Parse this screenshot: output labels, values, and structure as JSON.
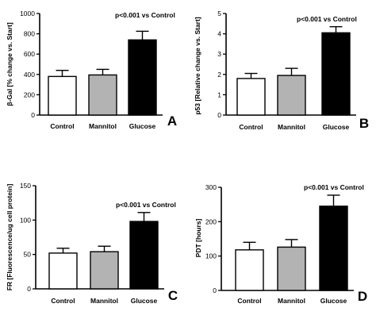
{
  "chart_data": [
    {
      "type": "bar",
      "panel_label": "A",
      "categories": [
        "Control",
        "Mannitol",
        "Glucose"
      ],
      "values": [
        380,
        395,
        740
      ],
      "errors": [
        60,
        55,
        85
      ],
      "ylabel": "β-Gal [% change vs. Start]",
      "ylim": [
        0,
        1000
      ],
      "yticks": [
        0,
        200,
        400,
        600,
        800,
        1000
      ],
      "annotation": "p<0.001 vs Control",
      "bar_colors": [
        "#ffffff",
        "#b3b3b3",
        "#000000"
      ]
    },
    {
      "type": "bar",
      "panel_label": "B",
      "categories": [
        "Control",
        "Mannitol",
        "Glucose"
      ],
      "values": [
        1.8,
        1.95,
        4.05
      ],
      "errors": [
        0.25,
        0.35,
        0.3
      ],
      "ylabel": "p53 [Relative change vs. Start]",
      "ylim": [
        0,
        5
      ],
      "yticks": [
        0,
        1,
        2,
        3,
        4,
        5
      ],
      "annotation": "p<0.001 vs Control",
      "bar_colors": [
        "#ffffff",
        "#b3b3b3",
        "#000000"
      ]
    },
    {
      "type": "bar",
      "panel_label": "C",
      "categories": [
        "Control",
        "Mannitol",
        "Glucose"
      ],
      "values": [
        52,
        54,
        98
      ],
      "errors": [
        7,
        8,
        13
      ],
      "ylabel": "FR [Fluorescence/ug cell protein]",
      "ylim": [
        0,
        150
      ],
      "yticks": [
        0,
        50,
        100,
        150
      ],
      "annotation": "p<0.001 vs Control",
      "bar_colors": [
        "#ffffff",
        "#b3b3b3",
        "#000000"
      ]
    },
    {
      "type": "bar",
      "panel_label": "D",
      "categories": [
        "Control",
        "Mannitol",
        "Glucose"
      ],
      "values": [
        118,
        126,
        245
      ],
      "errors": [
        22,
        22,
        32
      ],
      "ylabel": "PDT [hours]",
      "ylim": [
        0,
        300
      ],
      "yticks": [
        0,
        100,
        200,
        300
      ],
      "annotation": "p<0.001 vs Control",
      "bar_colors": [
        "#ffffff",
        "#b3b3b3",
        "#000000"
      ]
    }
  ]
}
